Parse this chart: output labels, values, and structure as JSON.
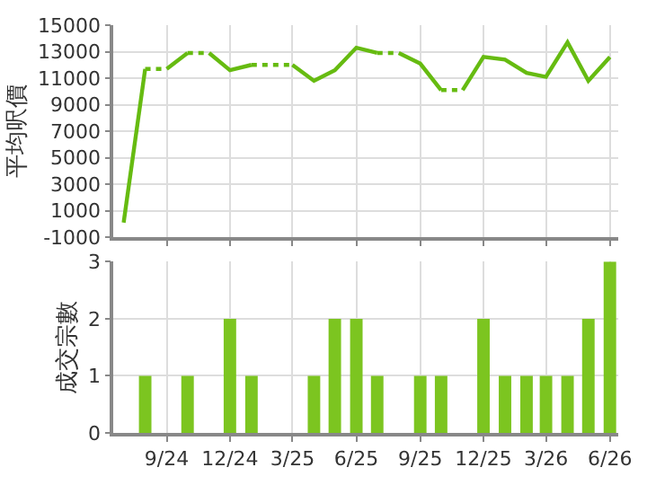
{
  "chart_data": [
    {
      "type": "line",
      "ylabel": "平均呎價",
      "xlim": [
        "2024-06-16",
        "2026-06-13"
      ],
      "ylim": [
        -1000,
        15000
      ],
      "yticks": [
        -1000,
        1000,
        3000,
        5000,
        7000,
        9000,
        11000,
        13000,
        15000
      ],
      "xticks": [
        {
          "value": "2024-09",
          "label": null
        },
        {
          "value": "2024-12",
          "label": null
        },
        {
          "value": "2025-03",
          "label": null
        },
        {
          "value": "2025-06",
          "label": null
        },
        {
          "value": "2025-09",
          "label": null
        },
        {
          "value": "2025-12",
          "label": null
        },
        {
          "value": "2026-03",
          "label": null
        },
        {
          "value": "2026-06",
          "label": null
        }
      ],
      "grid": true,
      "tick_labels": "y",
      "series": [
        {
          "color": "#66bb11",
          "line_style": "solid",
          "x": [
            "2024-07",
            "2024-08"
          ],
          "values": [
            100,
            11700
          ]
        },
        {
          "color": "#66bb11",
          "line_style": "dotted",
          "x": [
            "2024-08",
            "2024-09"
          ],
          "values": [
            11700,
            11700
          ]
        },
        {
          "color": "#66bb11",
          "line_style": "solid",
          "x": [
            "2024-09",
            "2024-10"
          ],
          "values": [
            11700,
            12900
          ]
        },
        {
          "color": "#66bb11",
          "line_style": "dotted",
          "x": [
            "2024-10",
            "2024-11"
          ],
          "values": [
            12900,
            12900
          ]
        },
        {
          "color": "#66bb11",
          "line_style": "solid",
          "x": [
            "2024-11",
            "2024-12",
            "2025-01"
          ],
          "values": [
            12900,
            11600,
            12000
          ]
        },
        {
          "color": "#66bb11",
          "line_style": "dotted",
          "x": [
            "2025-01",
            "2025-02",
            "2025-03"
          ],
          "values": [
            12000,
            12000,
            12000
          ]
        },
        {
          "color": "#66bb11",
          "line_style": "solid",
          "x": [
            "2025-03",
            "2025-04",
            "2025-05",
            "2025-06",
            "2025-07"
          ],
          "values": [
            12000,
            10800,
            11600,
            13300,
            12900
          ]
        },
        {
          "color": "#66bb11",
          "line_style": "dotted",
          "x": [
            "2025-07",
            "2025-08"
          ],
          "values": [
            12900,
            12900
          ]
        },
        {
          "color": "#66bb11",
          "line_style": "solid",
          "x": [
            "2025-08",
            "2025-09",
            "2025-10"
          ],
          "values": [
            12900,
            12100,
            10100
          ]
        },
        {
          "color": "#66bb11",
          "line_style": "dotted",
          "x": [
            "2025-10",
            "2025-11"
          ],
          "values": [
            10100,
            10100
          ]
        },
        {
          "color": "#66bb11",
          "line_style": "solid",
          "x": [
            "2025-11",
            "2025-12",
            "2026-01",
            "2026-02",
            "2026-03",
            "2026-04",
            "2026-05",
            "2026-06"
          ],
          "values": [
            10100,
            12600,
            12400,
            11400,
            11100,
            13700,
            10800,
            12600
          ]
        }
      ]
    },
    {
      "type": "bar",
      "ylabel": "成交宗數",
      "xlim": [
        "2024-06-16",
        "2026-06-13"
      ],
      "ylim": [
        0,
        3
      ],
      "yticks": [
        0,
        1,
        2,
        3
      ],
      "xticks": [
        {
          "value": "2024-09",
          "label": "9/24"
        },
        {
          "value": "2024-12",
          "label": "12/24"
        },
        {
          "value": "2025-03",
          "label": "3/25"
        },
        {
          "value": "2025-06",
          "label": "6/25"
        },
        {
          "value": "2025-09",
          "label": "9/25"
        },
        {
          "value": "2025-12",
          "label": "12/25"
        },
        {
          "value": "2026-03",
          "label": "3/26"
        },
        {
          "value": "2026-06",
          "label": "6/26"
        }
      ],
      "grid": true,
      "x": [
        "2024-08",
        "2024-09",
        "2024-10",
        "2024-11",
        "2024-12",
        "2025-01",
        "2025-02",
        "2025-03",
        "2025-04",
        "2025-05",
        "2025-06",
        "2025-07",
        "2025-08",
        "2025-09",
        "2025-10",
        "2025-11",
        "2025-12",
        "2026-01",
        "2026-02",
        "2026-03",
        "2026-04",
        "2026-05",
        "2026-06"
      ],
      "values": [
        1,
        0,
        1,
        0,
        2,
        1,
        0,
        0,
        1,
        2,
        2,
        1,
        0,
        1,
        1,
        0,
        2,
        1,
        1,
        1,
        1,
        2,
        3
      ],
      "color": "#7cc520"
    }
  ]
}
